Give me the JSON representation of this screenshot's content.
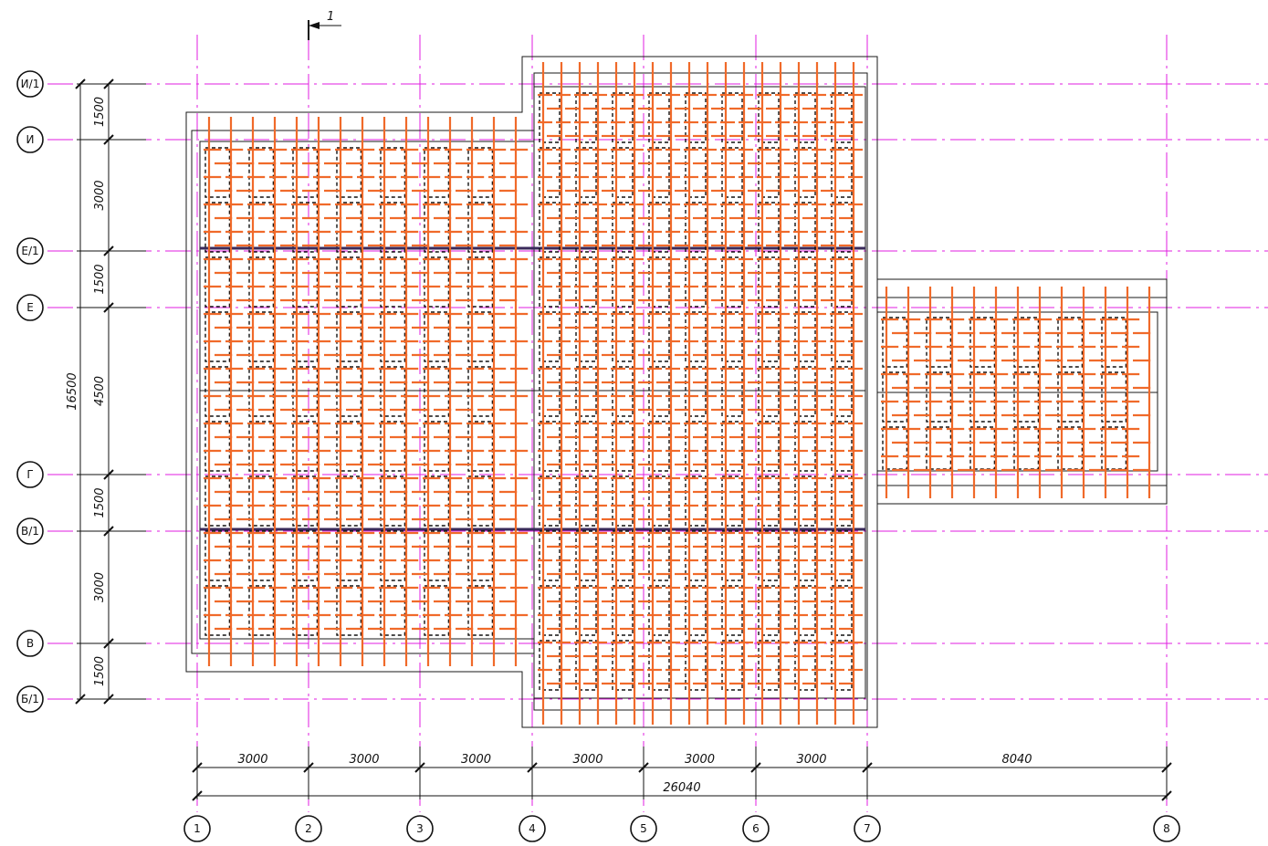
{
  "section_mark": {
    "label": "1"
  },
  "row_axes": [
    "И/1",
    "И",
    "Е/1",
    "Е",
    "Г",
    "В/1",
    "В",
    "Б/1"
  ],
  "col_axes": [
    "1",
    "2",
    "3",
    "4",
    "5",
    "6",
    "7",
    "8"
  ],
  "row_dimensions": [
    "1500",
    "3000",
    "1500",
    "4500",
    "1500",
    "3000",
    "1500"
  ],
  "row_total": "16500",
  "col_dimensions": [
    "3000",
    "3000",
    "3000",
    "3000",
    "3000",
    "3000",
    "8040"
  ],
  "col_total": "26040",
  "colors": {
    "axis": "#e01ee0",
    "rebar": "#f06a2a",
    "outline": "#1a1a1a"
  }
}
